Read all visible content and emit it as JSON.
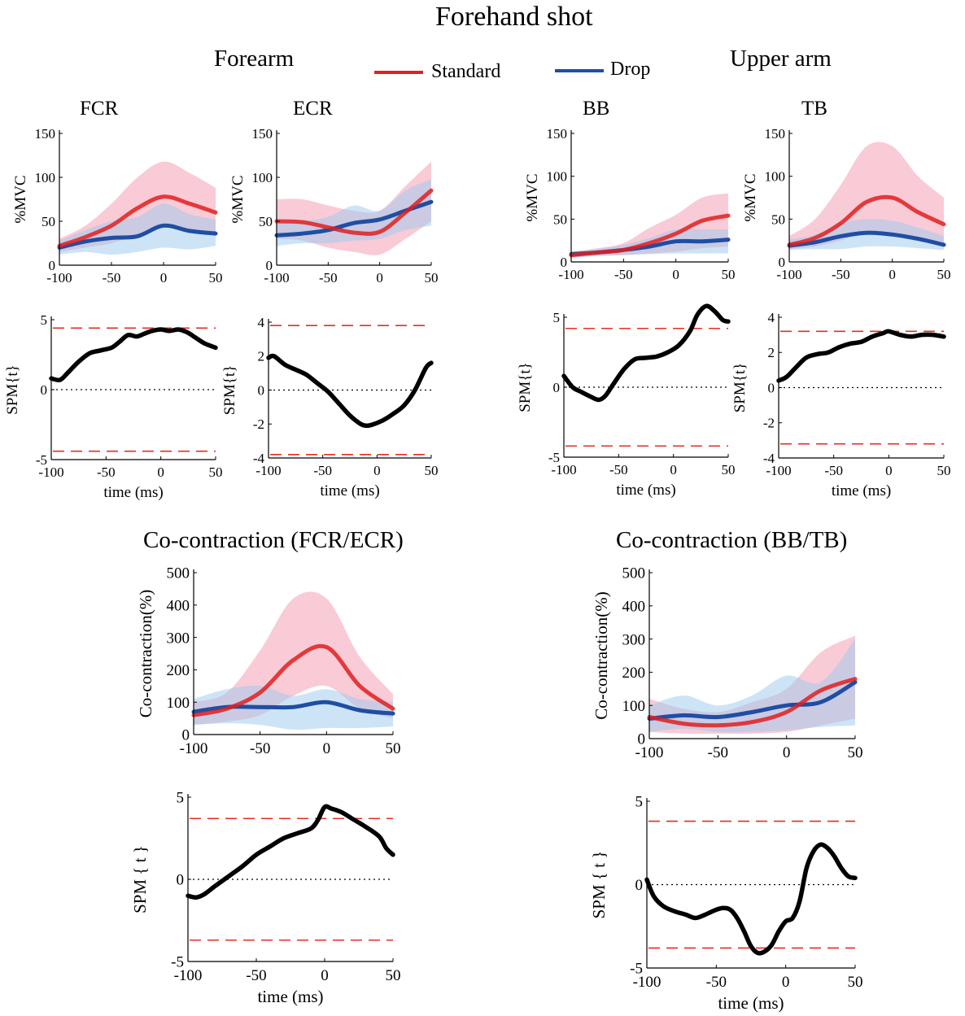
{
  "figure": {
    "title": "Forehand shot",
    "group_left": "Forearm",
    "group_right": "Upper arm",
    "co_left_title": "Co-contraction (FCR/ECR)",
    "co_right_title": "Co-contraction (BB/TB)"
  },
  "legend": {
    "items": [
      {
        "label": "Standard",
        "color": "#e02020"
      },
      {
        "label": "Drop",
        "color": "#1f4ea3"
      }
    ]
  },
  "colors": {
    "standard": "#e02020",
    "drop": "#1f4ea3",
    "standard_band": "#f4a0b4",
    "drop_band": "#9ccaf0",
    "overlap_line": "#c07060",
    "threshold": "#e03020",
    "spm_line": "#000000"
  },
  "chart_data": [
    {
      "id": "fcr_emg",
      "type": "line",
      "title": "FCR",
      "xlabel": "",
      "ylabel": "%MVC",
      "xlim": [
        -100,
        50
      ],
      "ylim": [
        0,
        150
      ],
      "xticks": [
        -100,
        -50,
        0,
        50
      ],
      "yticks": [
        0,
        50,
        100,
        150
      ],
      "x": [
        -100,
        -75,
        -50,
        -25,
        0,
        25,
        50
      ],
      "series": [
        {
          "name": "Standard",
          "values": [
            22,
            32,
            45,
            65,
            78,
            70,
            60
          ],
          "lower": [
            15,
            20,
            25,
            35,
            45,
            40,
            35
          ],
          "upper": [
            30,
            45,
            70,
            100,
            118,
            105,
            88
          ]
        },
        {
          "name": "Drop",
          "values": [
            20,
            27,
            31,
            33,
            45,
            39,
            36
          ],
          "lower": [
            12,
            15,
            12,
            15,
            20,
            18,
            22
          ],
          "upper": [
            28,
            40,
            50,
            55,
            70,
            58,
            52
          ]
        }
      ]
    },
    {
      "id": "ecr_emg",
      "type": "line",
      "title": "ECR",
      "xlabel": "",
      "ylabel": "%MVC",
      "xlim": [
        -100,
        50
      ],
      "ylim": [
        0,
        150
      ],
      "xticks": [
        -100,
        -50,
        0,
        50
      ],
      "yticks": [
        0,
        50,
        100,
        150
      ],
      "x": [
        -100,
        -75,
        -50,
        -25,
        0,
        25,
        50
      ],
      "series": [
        {
          "name": "Standard",
          "values": [
            50,
            49,
            43,
            37,
            38,
            60,
            85
          ],
          "lower": [
            30,
            28,
            20,
            15,
            12,
            30,
            50
          ],
          "upper": [
            75,
            75,
            68,
            62,
            62,
            90,
            118
          ]
        },
        {
          "name": "Drop",
          "values": [
            34,
            36,
            40,
            48,
            52,
            62,
            72
          ],
          "lower": [
            22,
            25,
            25,
            28,
            30,
            40,
            45
          ],
          "upper": [
            48,
            50,
            55,
            68,
            62,
            85,
            98
          ]
        }
      ]
    },
    {
      "id": "bb_emg",
      "type": "line",
      "title": "BB",
      "xlabel": "",
      "ylabel": "%MVC",
      "xlim": [
        -100,
        50
      ],
      "ylim": [
        0,
        150
      ],
      "xticks": [
        -100,
        -50,
        0,
        50
      ],
      "yticks": [
        0,
        50,
        100,
        150
      ],
      "x": [
        -100,
        -75,
        -50,
        -25,
        0,
        25,
        50
      ],
      "series": [
        {
          "name": "Standard",
          "values": [
            8,
            11,
            14,
            22,
            33,
            48,
            54
          ],
          "lower": [
            5,
            7,
            8,
            10,
            12,
            16,
            18
          ],
          "upper": [
            12,
            16,
            22,
            40,
            55,
            75,
            80
          ]
        },
        {
          "name": "Drop",
          "values": [
            9,
            11,
            14,
            18,
            24,
            24,
            26
          ],
          "lower": [
            5,
            7,
            8,
            9,
            10,
            10,
            10
          ],
          "upper": [
            12,
            15,
            20,
            28,
            38,
            38,
            38
          ]
        }
      ]
    },
    {
      "id": "tb_emg",
      "type": "line",
      "title": "TB",
      "xlabel": "",
      "ylabel": "%MVC",
      "xlim": [
        -100,
        50
      ],
      "ylim": [
        0,
        150
      ],
      "xticks": [
        -100,
        -50,
        0,
        50
      ],
      "yticks": [
        0,
        50,
        100,
        150
      ],
      "x": [
        -100,
        -75,
        -50,
        -25,
        0,
        25,
        50
      ],
      "series": [
        {
          "name": "Standard",
          "values": [
            20,
            28,
            45,
            70,
            75,
            58,
            44
          ],
          "lower": [
            15,
            18,
            25,
            35,
            32,
            25,
            22
          ],
          "upper": [
            30,
            50,
            90,
            135,
            135,
            100,
            75
          ]
        },
        {
          "name": "Drop",
          "values": [
            19,
            23,
            30,
            34,
            32,
            27,
            20
          ],
          "lower": [
            14,
            15,
            15,
            18,
            18,
            16,
            14
          ],
          "upper": [
            26,
            32,
            45,
            50,
            48,
            40,
            30
          ]
        }
      ]
    },
    {
      "id": "fcr_spm",
      "type": "line",
      "title": "",
      "xlabel": "time (ms)",
      "ylabel": "SPM{t}",
      "xlim": [
        -100,
        50
      ],
      "ylim": [
        -5,
        5
      ],
      "xticks": [
        -100,
        -50,
        0,
        50
      ],
      "yticks": [
        -5,
        0,
        5
      ],
      "threshold": 4.4,
      "zero_line": true,
      "x": [
        -100,
        -92,
        -85,
        -75,
        -65,
        -55,
        -45,
        -38,
        -30,
        -22,
        -15,
        -8,
        0,
        8,
        16,
        24,
        32,
        40,
        50
      ],
      "series": [
        {
          "name": "",
          "values": [
            0.8,
            0.7,
            1.2,
            2.0,
            2.6,
            2.8,
            3.0,
            3.4,
            3.9,
            3.8,
            4.0,
            4.2,
            4.3,
            4.2,
            4.3,
            4.1,
            3.7,
            3.3,
            3.0
          ]
        }
      ]
    },
    {
      "id": "ecr_spm",
      "type": "line",
      "title": "",
      "xlabel": "time (ms)",
      "ylabel": "SPM{t}",
      "xlim": [
        -100,
        50
      ],
      "ylim": [
        -4,
        4
      ],
      "xticks": [
        -100,
        -50,
        0,
        50
      ],
      "yticks": [
        -4,
        -2,
        0,
        2,
        4
      ],
      "threshold": 3.8,
      "zero_line": true,
      "x": [
        -100,
        -95,
        -85,
        -75,
        -65,
        -55,
        -45,
        -35,
        -25,
        -15,
        -10,
        -5,
        5,
        15,
        25,
        35,
        45,
        50
      ],
      "series": [
        {
          "name": "",
          "values": [
            1.9,
            2.0,
            1.5,
            1.2,
            0.9,
            0.4,
            -0.1,
            -0.8,
            -1.5,
            -2.0,
            -2.1,
            -2.05,
            -1.8,
            -1.4,
            -0.9,
            0.0,
            1.3,
            1.6
          ]
        }
      ]
    },
    {
      "id": "bb_spm",
      "type": "line",
      "title": "",
      "xlabel": "time (ms)",
      "ylabel": "SPM{t}",
      "xlim": [
        -100,
        50
      ],
      "ylim": [
        -5,
        5
      ],
      "xticks": [
        -100,
        -50,
        0,
        50
      ],
      "yticks": [
        -5,
        0,
        5
      ],
      "threshold": 4.2,
      "zero_line": true,
      "x": [
        -100,
        -92,
        -85,
        -75,
        -68,
        -62,
        -55,
        -45,
        -35,
        -25,
        -15,
        -5,
        5,
        15,
        22,
        30,
        38,
        45,
        50
      ],
      "series": [
        {
          "name": "",
          "values": [
            0.8,
            0.0,
            -0.3,
            -0.7,
            -0.9,
            -0.6,
            0.2,
            1.3,
            2.0,
            2.1,
            2.2,
            2.5,
            3.0,
            4.0,
            5.2,
            5.8,
            5.4,
            4.8,
            4.7
          ]
        }
      ]
    },
    {
      "id": "tb_spm",
      "type": "line",
      "title": "",
      "xlabel": "time (ms)",
      "ylabel": "SPM{t}",
      "xlim": [
        -100,
        50
      ],
      "ylim": [
        -4,
        4
      ],
      "xticks": [
        -100,
        -50,
        0,
        50
      ],
      "yticks": [
        -4,
        -2,
        0,
        2,
        4
      ],
      "threshold": 3.2,
      "zero_line": true,
      "x": [
        -100,
        -93,
        -85,
        -75,
        -65,
        -55,
        -45,
        -35,
        -25,
        -15,
        -5,
        0,
        10,
        20,
        30,
        40,
        50
      ],
      "series": [
        {
          "name": "",
          "values": [
            0.4,
            0.6,
            1.1,
            1.7,
            1.9,
            2.0,
            2.3,
            2.5,
            2.6,
            2.9,
            3.1,
            3.2,
            3.0,
            2.9,
            3.0,
            3.0,
            2.9
          ]
        }
      ]
    },
    {
      "id": "co_fcr_ecr",
      "type": "line",
      "title": "",
      "xlabel": "",
      "ylabel": "Co-contraction(%)",
      "xlim": [
        -100,
        50
      ],
      "ylim": [
        0,
        500
      ],
      "xticks": [
        -100,
        -50,
        0,
        50
      ],
      "yticks": [
        0,
        100,
        200,
        300,
        400,
        500
      ],
      "x": [
        -100,
        -75,
        -50,
        -25,
        0,
        25,
        50
      ],
      "series": [
        {
          "name": "Standard",
          "values": [
            60,
            80,
            130,
            230,
            270,
            150,
            80
          ],
          "lower": [
            30,
            40,
            60,
            120,
            150,
            80,
            50
          ],
          "upper": [
            100,
            130,
            260,
            420,
            420,
            240,
            125
          ]
        },
        {
          "name": "Drop",
          "values": [
            70,
            85,
            85,
            85,
            100,
            75,
            65
          ],
          "lower": [
            30,
            35,
            30,
            15,
            20,
            20,
            25
          ],
          "upper": [
            110,
            140,
            150,
            120,
            140,
            110,
            100
          ]
        }
      ]
    },
    {
      "id": "co_bb_tb",
      "type": "line",
      "title": "",
      "xlabel": "",
      "ylabel": "Co-contraction(%)",
      "xlim": [
        -100,
        50
      ],
      "ylim": [
        0,
        500
      ],
      "xticks": [
        -100,
        -50,
        0,
        50
      ],
      "yticks": [
        0,
        100,
        200,
        300,
        400,
        500
      ],
      "x": [
        -100,
        -75,
        -50,
        -25,
        0,
        25,
        50
      ],
      "series": [
        {
          "name": "Standard",
          "values": [
            65,
            45,
            40,
            50,
            80,
            145,
            180
          ],
          "lower": [
            20,
            15,
            15,
            15,
            20,
            40,
            60
          ],
          "upper": [
            120,
            90,
            80,
            110,
            150,
            260,
            310
          ]
        },
        {
          "name": "Drop",
          "values": [
            60,
            70,
            65,
            80,
            100,
            110,
            170
          ],
          "lower": [
            20,
            30,
            20,
            20,
            25,
            35,
            40
          ],
          "upper": [
            100,
            130,
            100,
            130,
            190,
            170,
            300
          ]
        }
      ]
    },
    {
      "id": "co_fcr_ecr_spm",
      "type": "line",
      "title": "",
      "xlabel": "time (ms)",
      "ylabel": "SPM { t }",
      "xlim": [
        -100,
        50
      ],
      "ylim": [
        -5,
        5
      ],
      "xticks": [
        -100,
        -50,
        0,
        50
      ],
      "yticks": [
        -5,
        0,
        5
      ],
      "threshold": 3.7,
      "zero_line": true,
      "x": [
        -100,
        -94,
        -88,
        -80,
        -70,
        -60,
        -50,
        -40,
        -30,
        -20,
        -10,
        -5,
        0,
        5,
        12,
        20,
        30,
        40,
        45,
        50
      ],
      "series": [
        {
          "name": "",
          "values": [
            -1.0,
            -1.1,
            -0.9,
            -0.4,
            0.2,
            0.8,
            1.5,
            2.0,
            2.5,
            2.8,
            3.1,
            3.6,
            4.4,
            4.3,
            4.1,
            3.7,
            3.2,
            2.6,
            1.9,
            1.5
          ]
        }
      ]
    },
    {
      "id": "co_bb_tb_spm",
      "type": "line",
      "title": "",
      "xlabel": "time (ms)",
      "ylabel": "SPM { t }",
      "xlim": [
        -100,
        50
      ],
      "ylim": [
        -5,
        5
      ],
      "xticks": [
        -100,
        -50,
        0,
        50
      ],
      "yticks": [
        -5,
        0,
        5
      ],
      "threshold": 3.8,
      "zero_line": true,
      "x": [
        -100,
        -95,
        -88,
        -80,
        -72,
        -65,
        -58,
        -50,
        -45,
        -40,
        -35,
        -30,
        -25,
        -20,
        -15,
        -10,
        -5,
        0,
        5,
        10,
        15,
        20,
        25,
        30,
        35,
        40,
        45,
        50
      ],
      "series": [
        {
          "name": "",
          "values": [
            0.3,
            -0.7,
            -1.3,
            -1.6,
            -1.8,
            -2.0,
            -1.8,
            -1.5,
            -1.4,
            -1.5,
            -2.0,
            -2.8,
            -3.7,
            -4.1,
            -4.0,
            -3.6,
            -2.8,
            -2.2,
            -2.0,
            -1.0,
            1.0,
            2.0,
            2.4,
            2.2,
            1.7,
            1.0,
            0.5,
            0.4
          ]
        }
      ]
    }
  ]
}
